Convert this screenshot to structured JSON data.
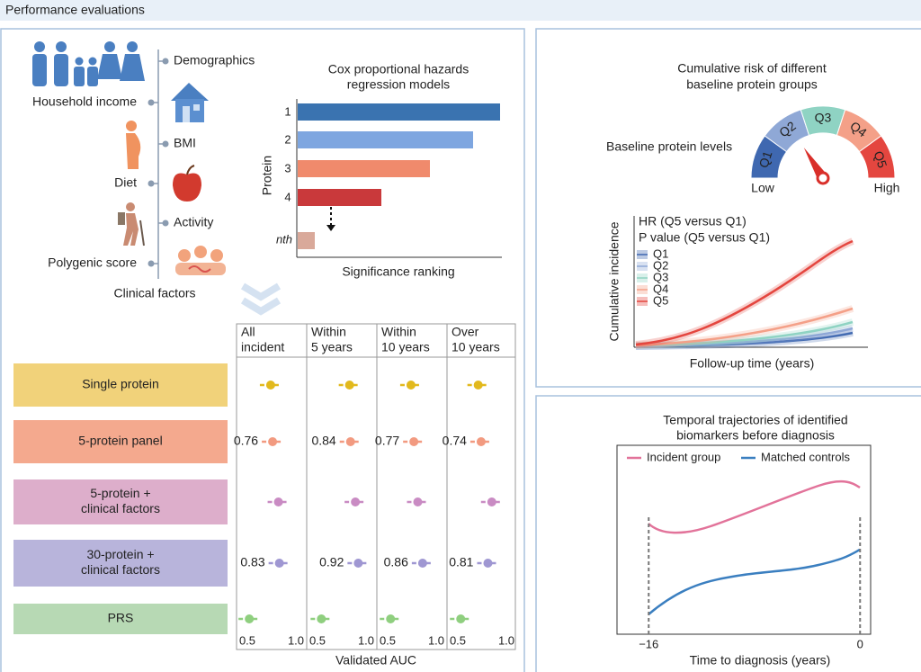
{
  "header": {
    "title": "Performance evaluations"
  },
  "factors": {
    "items": [
      "Demographics",
      "Household income",
      "BMI",
      "Diet",
      "Activity",
      "Polygenic score"
    ],
    "label": "Clinical factors"
  },
  "cox": {
    "title_lines": [
      "Cox proportional hazards",
      "regression models"
    ],
    "ylabel": "Protein",
    "ranks": [
      "1",
      "2",
      "3",
      "4"
    ],
    "last_rank": "nth",
    "xlabel": "Significance ranking"
  },
  "auc": {
    "type": "dot",
    "columns": [
      [
        "All",
        "incident"
      ],
      [
        "Within",
        "5 years"
      ],
      [
        "Within",
        "10 years"
      ],
      [
        "Over",
        "10 years"
      ]
    ],
    "series": [
      {
        "label_lines": [
          "Single protein"
        ],
        "box_color": "#f1d27a",
        "color": "#e2b91d",
        "values": [
          0.74,
          0.83,
          0.74,
          0.71
        ],
        "value_labels": [
          null,
          null,
          null,
          null
        ],
        "value_label_colors": [
          null,
          null,
          null,
          null
        ]
      },
      {
        "label_lines": [
          "5-protein panel"
        ],
        "box_color": "#f4a98e",
        "color": "#f29a80",
        "values": [
          0.76,
          0.84,
          0.77,
          0.74
        ],
        "value_labels": [
          "0.76",
          "0.84",
          "0.77",
          "0.74"
        ],
        "value_label_colors": [
          "#222222",
          "#d6453c",
          "#222222",
          "#222222"
        ]
      },
      {
        "label_lines": [
          "5-protein +",
          "clinical factors"
        ],
        "box_color": "#ddaecb",
        "color": "#c98bc3",
        "values": [
          0.82,
          0.89,
          0.81,
          0.85
        ],
        "value_labels": [
          null,
          null,
          null,
          null
        ],
        "value_label_colors": [
          null,
          null,
          null,
          null
        ]
      },
      {
        "label_lines": [
          "30-protein +",
          "clinical factors"
        ],
        "box_color": "#b8b4db",
        "color": "#9f97d2",
        "values": [
          0.83,
          0.92,
          0.86,
          0.81
        ],
        "value_labels": [
          "0.83",
          "0.92",
          "0.86",
          "0.81"
        ],
        "value_label_colors": [
          "#222222",
          "#d6453c",
          "#222222",
          "#222222"
        ]
      },
      {
        "label_lines": [
          "PRS"
        ],
        "box_color": "#b7d9b4",
        "color": "#8fcf7f",
        "values": [
          0.52,
          0.54,
          0.53,
          0.53
        ],
        "value_labels": [
          null,
          null,
          null,
          null
        ],
        "value_label_colors": [
          null,
          null,
          null,
          null
        ]
      }
    ],
    "xlim": [
      0.5,
      1.0
    ],
    "xticks": [
      0.5,
      {
        "value": 1,
        "label": "1.0"
      }
    ],
    "xlabel": "Validated AUC"
  },
  "risk": {
    "title_lines": [
      "Cumulative risk of different",
      "baseline protein groups"
    ],
    "gauge_label": "Baseline protein levels",
    "low": "Low",
    "high": "High",
    "groups": [
      {
        "name": "Q1",
        "color": "#3f68b0"
      },
      {
        "name": "Q2",
        "color": "#8fa8d6"
      },
      {
        "name": "Q3",
        "color": "#8fd3c3"
      },
      {
        "name": "Q4",
        "color": "#f4a088"
      },
      {
        "name": "Q5",
        "color": "#e4463f"
      }
    ],
    "annotations": [
      "HR (Q5 versus Q1)",
      "P value (Q5 versus Q1)"
    ],
    "ylabel": "Cumulative incidence",
    "xlabel": "Follow-up time (years)"
  },
  "trajectory": {
    "title_lines": [
      "Temporal trajectories of identified",
      "biomarkers before diagnosis"
    ],
    "series": [
      {
        "name": "Incident group",
        "color": "#e2739a"
      },
      {
        "name": "Matched controls",
        "color": "#3b7fc0"
      }
    ],
    "xlim": [
      -18.4,
      0.8
    ],
    "xticks": [
      {
        "value": -16,
        "label": "−16"
      },
      0
    ],
    "xlabel": "Time to diagnosis (years)"
  }
}
